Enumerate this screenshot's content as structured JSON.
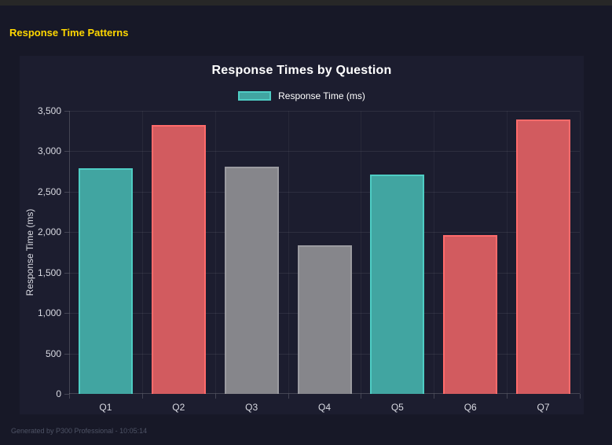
{
  "page": {
    "title": "Response Time Patterns",
    "footer": "Generated by P300 Professional - 10:05:14"
  },
  "chart_data": {
    "type": "bar",
    "title": "Response Times by Question",
    "legend": {
      "label": "Response Time (ms)",
      "position": "top",
      "swatch_fill": "#41A5A1",
      "swatch_border": "#4ECDC4"
    },
    "categories": [
      "Q1",
      "Q2",
      "Q3",
      "Q4",
      "Q5",
      "Q6",
      "Q7"
    ],
    "values": [
      2790,
      3325,
      2810,
      1840,
      2715,
      1965,
      3395
    ],
    "bar_palette": [
      "teal",
      "red",
      "gray",
      "gray",
      "teal",
      "red",
      "red"
    ],
    "palette": {
      "teal": {
        "fill": "#41A5A1",
        "border": "#4ECDC4"
      },
      "red": {
        "fill": "#D25B5F",
        "border": "#FF6B6B"
      },
      "gray": {
        "fill": "#86868B",
        "border": "#9B9BA0"
      }
    },
    "xlabel": "",
    "ylabel": "Response Time (ms)",
    "ylim": [
      0,
      3500
    ],
    "ytick_step": 500,
    "ytick_labels": [
      "0",
      "500",
      "1,000",
      "1,500",
      "2,000",
      "2,500",
      "3,000",
      "3,500"
    ],
    "grid": true
  },
  "colors": {
    "page_bg": "#171827",
    "panel_bg": "#1C1D2F",
    "chrome_strip": "#272727",
    "accent_yellow": "#FFD700",
    "text_primary": "#FFFFFF",
    "text_tick": "#D9DAE2",
    "text_footer": "#4E5365",
    "grid_line": "rgba(255,255,255,0.08)",
    "grid_line_v": "rgba(255,255,255,0.05)",
    "axis_line": "rgba(255,255,255,0.18)"
  }
}
